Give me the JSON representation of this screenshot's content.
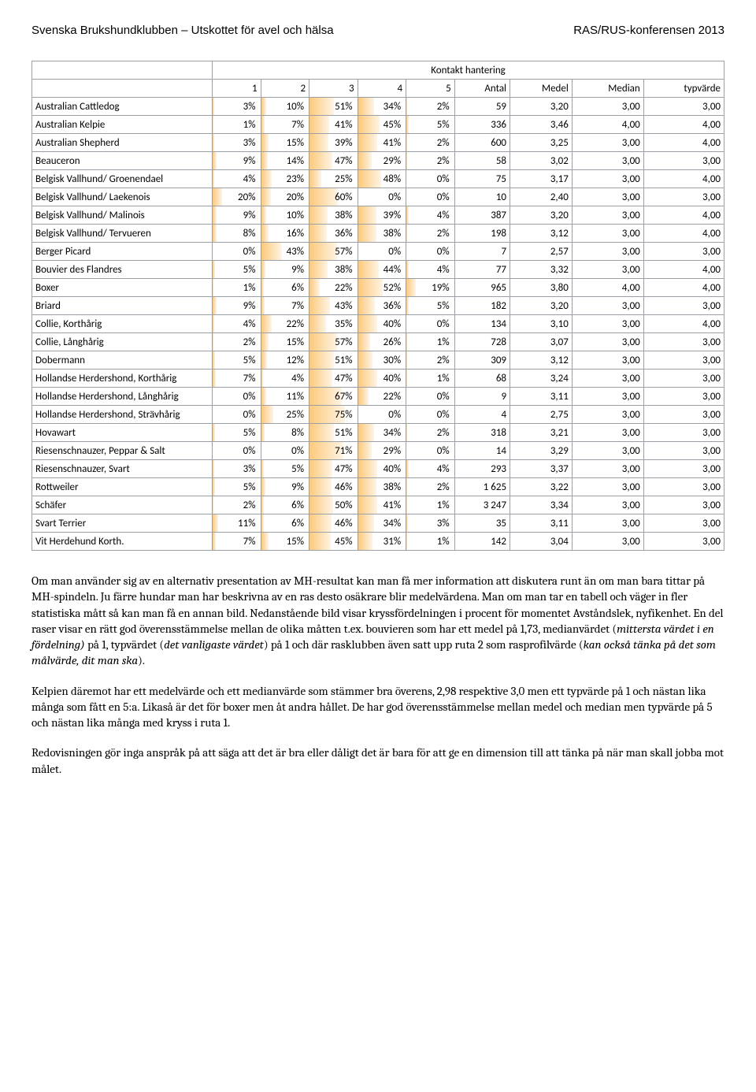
{
  "header": {
    "left": "Svenska Brukshundklubben – Utskottet för avel och hälsa",
    "right": "RAS/RUS-konferensen 2013"
  },
  "table": {
    "title": "Kontakt hantering",
    "columns": [
      "1",
      "2",
      "3",
      "4",
      "5",
      "Antal",
      "Medel",
      "Median",
      "typvärde"
    ],
    "rows": [
      {
        "breed": "Australian Cattledog",
        "p": [
          3,
          10,
          51,
          34,
          2
        ],
        "antal": "59",
        "medel": "3,20",
        "median": "3,00",
        "typ": "3,00"
      },
      {
        "breed": "Australian Kelpie",
        "p": [
          1,
          7,
          41,
          45,
          5
        ],
        "antal": "336",
        "medel": "3,46",
        "median": "4,00",
        "typ": "4,00"
      },
      {
        "breed": "Australian Shepherd",
        "p": [
          3,
          15,
          39,
          41,
          2
        ],
        "antal": "600",
        "medel": "3,25",
        "median": "3,00",
        "typ": "4,00"
      },
      {
        "breed": "Beauceron",
        "p": [
          9,
          14,
          47,
          29,
          2
        ],
        "antal": "58",
        "medel": "3,02",
        "median": "3,00",
        "typ": "3,00"
      },
      {
        "breed": "Belgisk Vallhund/ Groenendael",
        "p": [
          4,
          23,
          25,
          48,
          0
        ],
        "antal": "75",
        "medel": "3,17",
        "median": "3,00",
        "typ": "4,00"
      },
      {
        "breed": "Belgisk Vallhund/ Laekenois",
        "p": [
          20,
          20,
          60,
          0,
          0
        ],
        "antal": "10",
        "medel": "2,40",
        "median": "3,00",
        "typ": "3,00"
      },
      {
        "breed": "Belgisk Vallhund/ Malinois",
        "p": [
          9,
          10,
          38,
          39,
          4
        ],
        "antal": "387",
        "medel": "3,20",
        "median": "3,00",
        "typ": "4,00"
      },
      {
        "breed": "Belgisk Vallhund/ Tervueren",
        "p": [
          8,
          16,
          36,
          38,
          2
        ],
        "antal": "198",
        "medel": "3,12",
        "median": "3,00",
        "typ": "4,00"
      },
      {
        "breed": "Berger Picard",
        "p": [
          0,
          43,
          57,
          0,
          0
        ],
        "antal": "7",
        "medel": "2,57",
        "median": "3,00",
        "typ": "3,00"
      },
      {
        "breed": "Bouvier des Flandres",
        "p": [
          5,
          9,
          38,
          44,
          4
        ],
        "antal": "77",
        "medel": "3,32",
        "median": "3,00",
        "typ": "4,00"
      },
      {
        "breed": "Boxer",
        "p": [
          1,
          6,
          22,
          52,
          19
        ],
        "antal": "965",
        "medel": "3,80",
        "median": "4,00",
        "typ": "4,00"
      },
      {
        "breed": "Briard",
        "p": [
          9,
          7,
          43,
          36,
          5
        ],
        "antal": "182",
        "medel": "3,20",
        "median": "3,00",
        "typ": "3,00"
      },
      {
        "breed": "Collie, Korthårig",
        "p": [
          4,
          22,
          35,
          40,
          0
        ],
        "antal": "134",
        "medel": "3,10",
        "median": "3,00",
        "typ": "4,00"
      },
      {
        "breed": "Collie, Långhårig",
        "p": [
          2,
          15,
          57,
          26,
          1
        ],
        "antal": "728",
        "medel": "3,07",
        "median": "3,00",
        "typ": "3,00"
      },
      {
        "breed": "Dobermann",
        "p": [
          5,
          12,
          51,
          30,
          2
        ],
        "antal": "309",
        "medel": "3,12",
        "median": "3,00",
        "typ": "3,00"
      },
      {
        "breed": "Hollandse Herdershond, Korthårig",
        "p": [
          7,
          4,
          47,
          40,
          1
        ],
        "antal": "68",
        "medel": "3,24",
        "median": "3,00",
        "typ": "3,00"
      },
      {
        "breed": "Hollandse Herdershond, Långhårig",
        "p": [
          0,
          11,
          67,
          22,
          0
        ],
        "antal": "9",
        "medel": "3,11",
        "median": "3,00",
        "typ": "3,00"
      },
      {
        "breed": "Hollandse Herdershond, Strävhårig",
        "p": [
          0,
          25,
          75,
          0,
          0
        ],
        "antal": "4",
        "medel": "2,75",
        "median": "3,00",
        "typ": "3,00"
      },
      {
        "breed": "Hovawart",
        "p": [
          5,
          8,
          51,
          34,
          2
        ],
        "antal": "318",
        "medel": "3,21",
        "median": "3,00",
        "typ": "3,00"
      },
      {
        "breed": "Riesenschnauzer, Peppar & Salt",
        "p": [
          0,
          0,
          71,
          29,
          0
        ],
        "antal": "14",
        "medel": "3,29",
        "median": "3,00",
        "typ": "3,00"
      },
      {
        "breed": "Riesenschnauzer, Svart",
        "p": [
          3,
          5,
          47,
          40,
          4
        ],
        "antal": "293",
        "medel": "3,37",
        "median": "3,00",
        "typ": "3,00"
      },
      {
        "breed": "Rottweiler",
        "p": [
          5,
          9,
          46,
          38,
          2
        ],
        "antal": "1 625",
        "medel": "3,22",
        "median": "3,00",
        "typ": "3,00"
      },
      {
        "breed": "Schäfer",
        "p": [
          2,
          6,
          50,
          41,
          1
        ],
        "antal": "3 247",
        "medel": "3,34",
        "median": "3,00",
        "typ": "3,00"
      },
      {
        "breed": "Svart Terrier",
        "p": [
          11,
          6,
          46,
          34,
          3
        ],
        "antal": "35",
        "medel": "3,11",
        "median": "3,00",
        "typ": "3,00"
      },
      {
        "breed": "Vit Herdehund Korth.",
        "p": [
          7,
          15,
          45,
          31,
          1
        ],
        "antal": "142",
        "medel": "3,04",
        "median": "3,00",
        "typ": "3,00"
      }
    ]
  },
  "paragraphs": {
    "p1a": "Om man använder sig av en alternativ presentation av MH-resultat kan man få mer information att diskutera runt än om man bara tittar på MH-spindeln. Ju färre hundar man har beskrivna av en ras desto osäkrare blir medelvärdena. Man om man tar en tabell och väger in fler statistiska mått så kan man få en annan bild. Nedanstående bild visar kryssfördelningen i procent för momentet Avståndslek, nyfikenhet. En del raser visar en rätt god överensstämmelse mellan de olika måtten t.ex. bouvieren som har ett medel på 1,73, medianvärdet (",
    "p1i1": "mittersta värdet i en fördelning)",
    "p1b": " på 1, typvärdet (",
    "p1i2": "det vanligaste värdet",
    "p1c": ") på 1 och där rasklubben även satt upp ruta 2 som rasprofilvärde (",
    "p1i3": "kan också tänka på det som målvärde, dit man ska",
    "p1d": ").",
    "p2": "Kelpien däremot har ett medelvärde och ett medianvärde som stämmer bra överens, 2,98 respektive 3,0 men ett typvärde på 1 och nästan lika många som fått en 5:a. Likaså är det för boxer men åt andra hållet. De har god överensstämmelse mellan medel och median men typvärde på 5 och nästan lika många med kryss i ruta 1.",
    "p3": "Redovisningen gör inga anspråk på att säga att det är bra eller dåligt det är bara för att ge en dimension till att tänka på när man skall jobba mot målet."
  }
}
